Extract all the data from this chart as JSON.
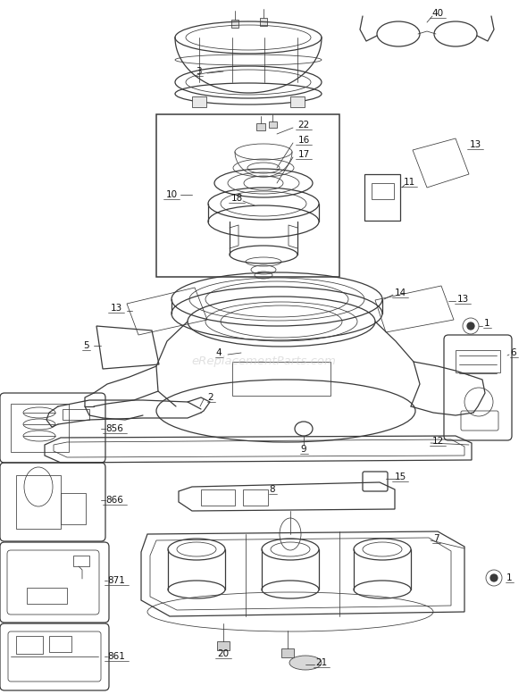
{
  "bg_color": "#ffffff",
  "line_color": "#3a3a3a",
  "label_color": "#111111",
  "watermark": "eReplacementParts.com",
  "watermark_color": "#cccccc",
  "fig_w": 5.9,
  "fig_h": 7.77,
  "dpi": 100
}
